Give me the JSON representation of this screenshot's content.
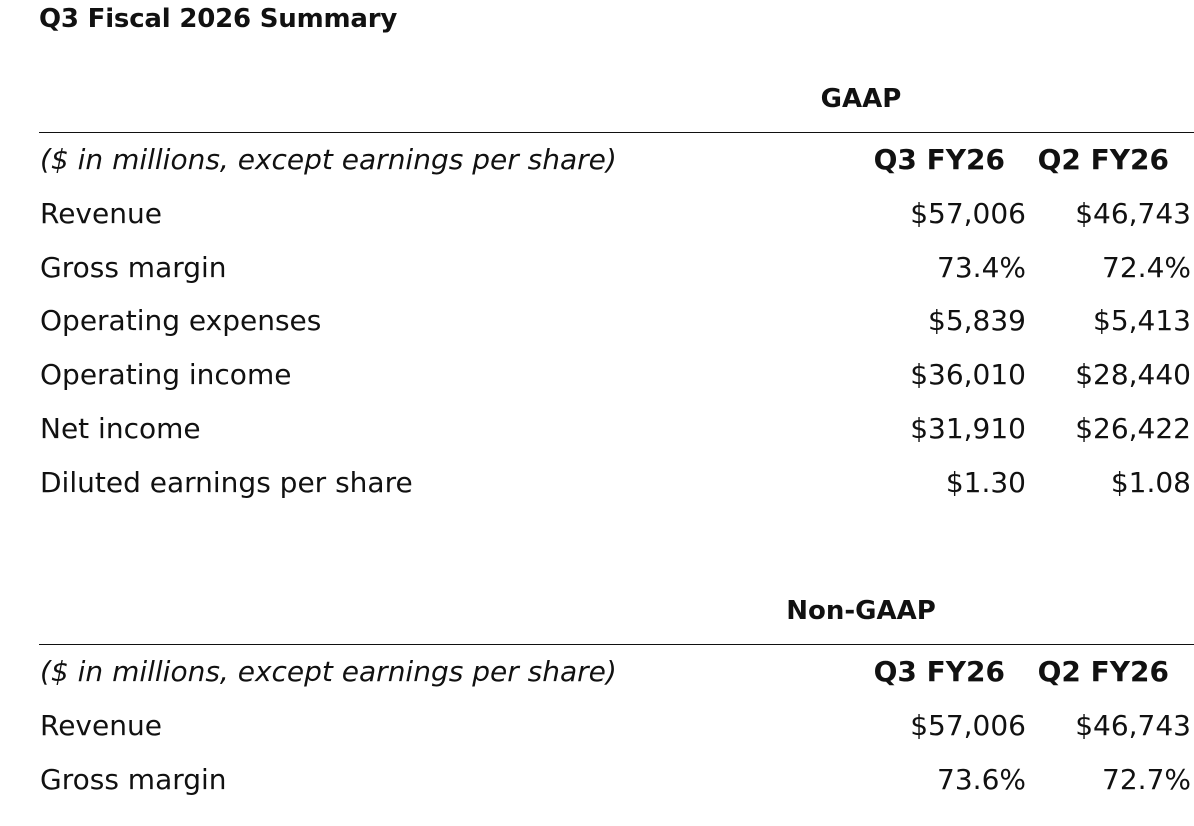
{
  "page": {
    "title": "Q3 Fiscal 2026 Summary"
  },
  "gaap": {
    "heading": "GAAP",
    "label_header": "($ in millions, except earnings per share)",
    "columns": [
      "Q3 FY26",
      "Q2 FY26"
    ],
    "rows": [
      {
        "label": "Revenue",
        "values": [
          "$57,006",
          "$46,743"
        ]
      },
      {
        "label": "Gross margin",
        "values": [
          "73.4%",
          "72.4%"
        ]
      },
      {
        "label": "Operating expenses",
        "values": [
          "$5,839",
          "$5,413"
        ]
      },
      {
        "label": "Operating income",
        "values": [
          "$36,010",
          "$28,440"
        ]
      },
      {
        "label": "Net income",
        "values": [
          "$31,910",
          "$26,422"
        ]
      },
      {
        "label": "Diluted earnings per share",
        "values": [
          "$1.30",
          "$1.08"
        ]
      }
    ]
  },
  "non_gaap": {
    "heading": "Non-GAAP",
    "label_header": "($ in millions, except earnings per share)",
    "columns": [
      "Q3 FY26",
      "Q2 FY26"
    ],
    "rows": [
      {
        "label": "Revenue",
        "values": [
          "$57,006",
          "$46,743"
        ]
      },
      {
        "label": "Gross margin",
        "values": [
          "73.6%",
          "72.7%"
        ]
      }
    ]
  }
}
